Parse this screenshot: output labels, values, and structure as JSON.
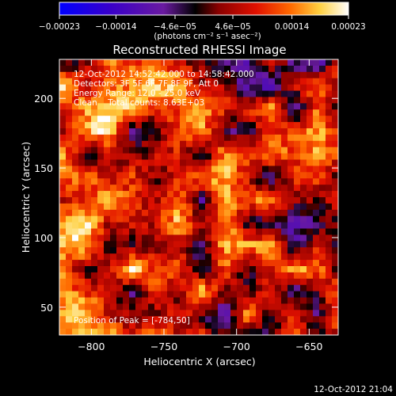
{
  "chart_data": {
    "type": "heatmap",
    "title": "Reconstructed RHESSI Image",
    "xlabel": "Heliocentric X (arcsec)",
    "ylabel": "Heliocentric Y (arcsec)",
    "xlim": [
      -822,
      -630
    ],
    "ylim": [
      30,
      228
    ],
    "xticks": [
      -800,
      -750,
      -700,
      -650
    ],
    "xtick_labels": [
      "−800",
      "−750",
      "−700",
      "−650"
    ],
    "yticks": [
      50,
      100,
      150,
      200
    ],
    "ytick_labels": [
      "50",
      "100",
      "150",
      "200"
    ],
    "colorbar": {
      "min": -0.00023,
      "max": 0.00023,
      "tick_values": [
        -0.00023,
        -0.00014,
        -4.6e-05,
        4.6e-05,
        0.00014,
        0.00023
      ],
      "tick_labels": [
        "−0.00023",
        "−0.00014",
        "−4.6e−05",
        "4.6e−05",
        "0.00014",
        "0.00023"
      ],
      "unit_label": "(photons cm⁻² s⁻¹ asec⁻²)",
      "colors": [
        "#0000ff",
        "#3a00c8",
        "#6a1aa0",
        "#000000",
        "#8a0000",
        "#e01000",
        "#ff6a00",
        "#ffd040",
        "#ffffff"
      ]
    },
    "annotations": [
      "12-Oct-2012 14:52:42.000 to 14:58:42.000",
      "Detectors: 3F 5F 6F 7F 8F 9F, Att 0",
      "Energy Range: 12.0 - 25.0 keV",
      "Clean    Total counts: 8.63E+03"
    ],
    "peak_label": "Position of Peak = [-784,50]",
    "peak_position": [
      -784,
      50
    ],
    "footer_timestamp": "12-Oct-2012 21:04"
  }
}
